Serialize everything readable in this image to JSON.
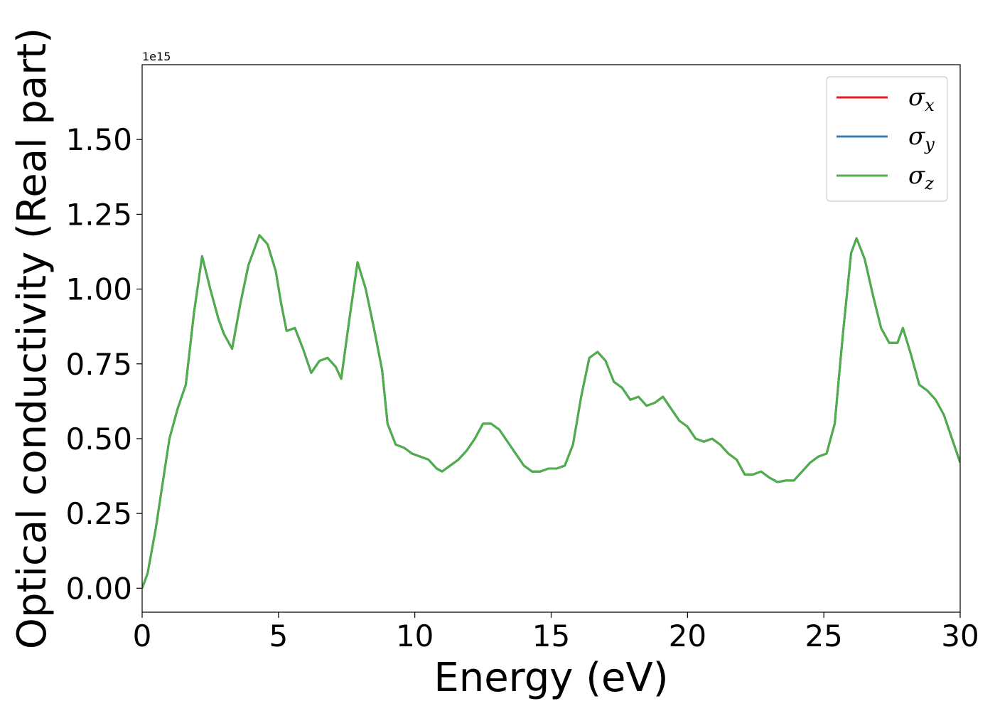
{
  "chart_data": {
    "type": "line",
    "xlabel": "Energy (eV)",
    "ylabel": "Optical conductivity (Real part)",
    "y_offset_label": "1e15",
    "xlim": [
      0,
      30
    ],
    "ylim": [
      -0.08,
      1.75
    ],
    "x_ticks": [
      0,
      5,
      10,
      15,
      20,
      25,
      30
    ],
    "x_tick_labels": [
      "0",
      "5",
      "10",
      "15",
      "20",
      "25",
      "30"
    ],
    "y_ticks": [
      0.0,
      0.25,
      0.5,
      0.75,
      1.0,
      1.25,
      1.5
    ],
    "y_tick_labels": [
      "0.00",
      "0.25",
      "0.50",
      "0.75",
      "1.00",
      "1.25",
      "1.50"
    ],
    "grid": false,
    "legend_position": "top-right",
    "series": [
      {
        "name": "σ",
        "subscript": "x",
        "color": "#e41a1c"
      },
      {
        "name": "σ",
        "subscript": "y",
        "color": "#377eb8"
      },
      {
        "name": "σ",
        "subscript": "z",
        "color": "#4daf4a"
      }
    ],
    "x": [
      0,
      0.2,
      0.5,
      0.8,
      1.0,
      1.3,
      1.6,
      1.9,
      2.2,
      2.5,
      2.8,
      3.0,
      3.3,
      3.6,
      3.9,
      4.3,
      4.6,
      4.9,
      5.1,
      5.3,
      5.6,
      5.9,
      6.2,
      6.5,
      6.8,
      7.1,
      7.3,
      7.6,
      7.9,
      8.2,
      8.5,
      8.8,
      9.0,
      9.3,
      9.6,
      9.9,
      10.2,
      10.5,
      10.8,
      11.0,
      11.3,
      11.6,
      11.9,
      12.2,
      12.5,
      12.8,
      13.1,
      13.4,
      13.7,
      14.0,
      14.3,
      14.6,
      14.9,
      15.2,
      15.5,
      15.8,
      16.1,
      16.4,
      16.7,
      17.0,
      17.3,
      17.6,
      17.9,
      18.2,
      18.5,
      18.8,
      19.1,
      19.4,
      19.7,
      20.0,
      20.3,
      20.6,
      20.9,
      21.2,
      21.5,
      21.8,
      22.1,
      22.4,
      22.7,
      23.0,
      23.3,
      23.6,
      23.9,
      24.2,
      24.5,
      24.8,
      25.1,
      25.4,
      25.7,
      26.0,
      26.2,
      26.5,
      26.8,
      27.1,
      27.4,
      27.7,
      27.9,
      28.2,
      28.5,
      28.8,
      29.1,
      29.4,
      29.7,
      30.0
    ],
    "y": [
      0.0,
      0.05,
      0.2,
      0.38,
      0.5,
      0.6,
      0.68,
      0.92,
      1.11,
      1.0,
      0.9,
      0.85,
      0.8,
      0.95,
      1.08,
      1.18,
      1.15,
      1.06,
      0.95,
      0.86,
      0.87,
      0.8,
      0.72,
      0.76,
      0.77,
      0.74,
      0.7,
      0.9,
      1.09,
      1.0,
      0.87,
      0.73,
      0.55,
      0.48,
      0.47,
      0.45,
      0.44,
      0.43,
      0.4,
      0.39,
      0.41,
      0.43,
      0.46,
      0.5,
      0.55,
      0.55,
      0.53,
      0.49,
      0.45,
      0.41,
      0.39,
      0.39,
      0.4,
      0.4,
      0.41,
      0.48,
      0.64,
      0.77,
      0.79,
      0.76,
      0.69,
      0.67,
      0.63,
      0.64,
      0.61,
      0.62,
      0.64,
      0.6,
      0.56,
      0.54,
      0.5,
      0.49,
      0.5,
      0.48,
      0.45,
      0.43,
      0.38,
      0.38,
      0.39,
      0.37,
      0.355,
      0.36,
      0.36,
      0.39,
      0.42,
      0.44,
      0.45,
      0.55,
      0.85,
      1.12,
      1.17,
      1.1,
      0.98,
      0.87,
      0.82,
      0.82,
      0.87,
      0.78,
      0.68,
      0.66,
      0.63,
      0.58,
      0.5,
      0.42
    ]
  }
}
